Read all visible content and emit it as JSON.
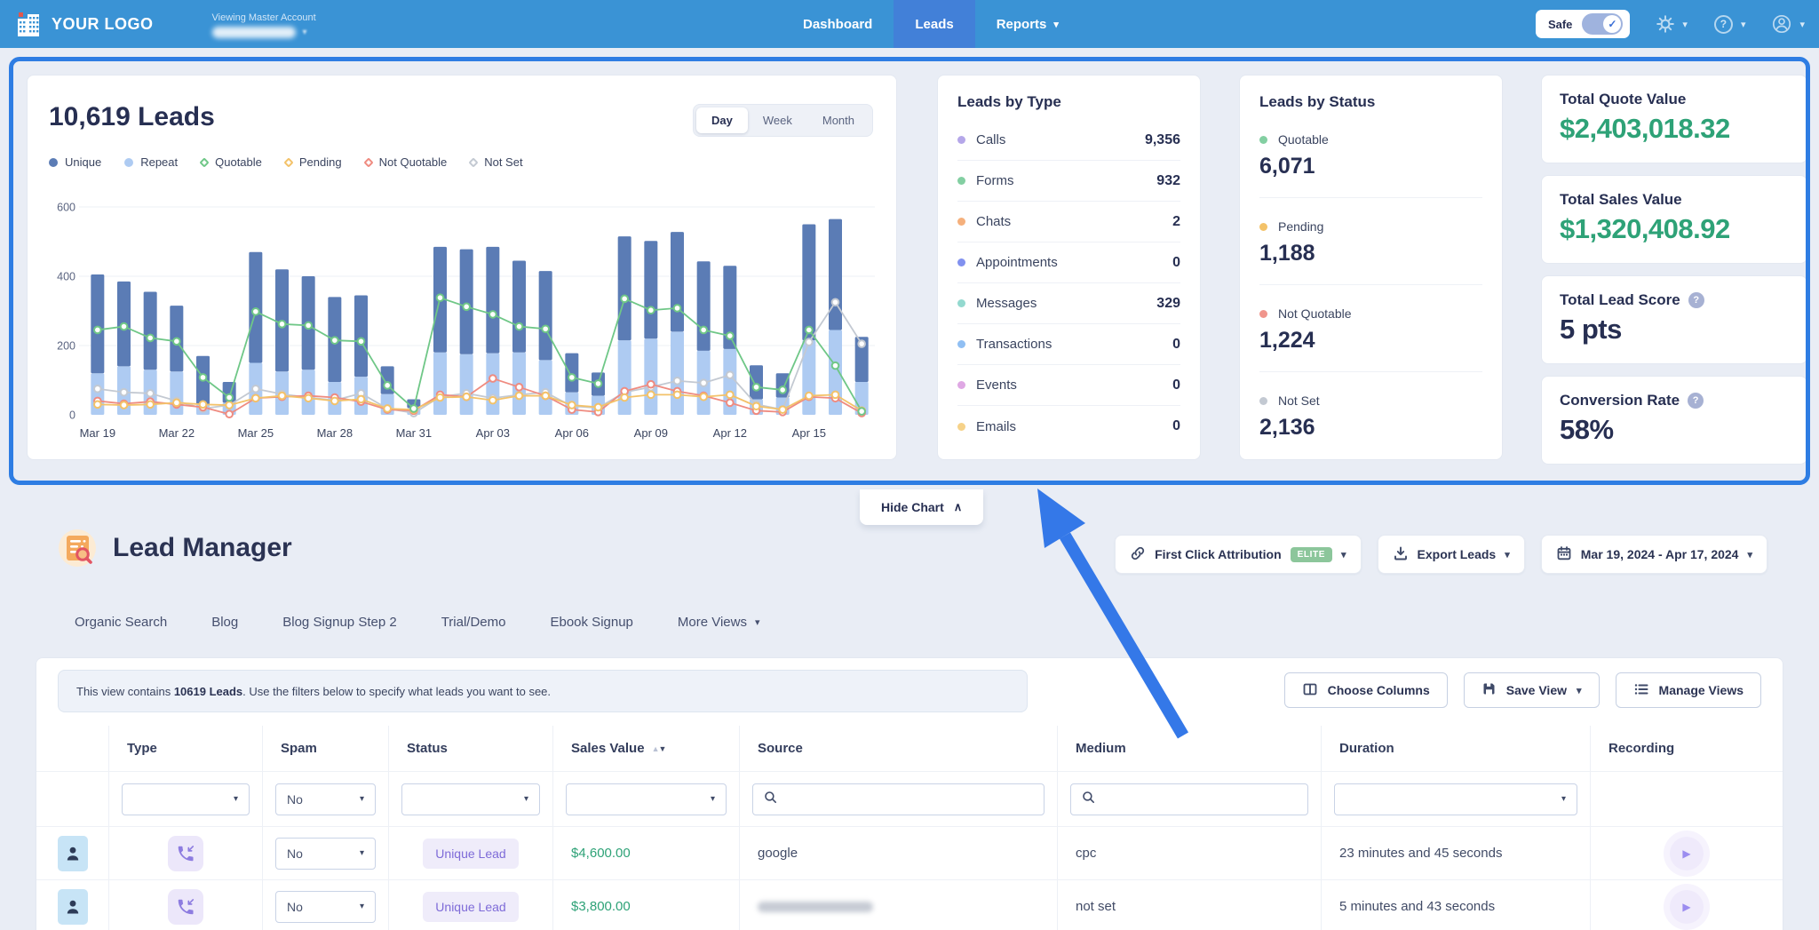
{
  "icons": {
    "chevron_down": "▾",
    "chevron_up": "∧",
    "help": "?",
    "play": "▶",
    "sort_up": "▲",
    "sort_down": "▼",
    "check": "✓"
  },
  "colors": {
    "nav_blue": "#3a93d5",
    "nav_active_tab": "#4280d8",
    "highlight_border": "#2e7de3",
    "annotation_arrow": "#3478e8",
    "money_green": "#2ea277",
    "navy": "#272f52"
  },
  "nav": {
    "logo_text": "YOUR LOGO",
    "viewing_label": "Viewing Master Account",
    "links": [
      {
        "label": "Dashboard",
        "active": false,
        "dropdown": false
      },
      {
        "label": "Leads",
        "active": true,
        "dropdown": false
      },
      {
        "label": "Reports",
        "active": false,
        "dropdown": true
      }
    ],
    "safe_label": "Safe"
  },
  "chart_card": {
    "title": "10,619 Leads",
    "range_tabs": [
      {
        "label": "Day",
        "active": true
      },
      {
        "label": "Week",
        "active": false
      },
      {
        "label": "Month",
        "active": false
      }
    ],
    "legend": [
      {
        "label": "Unique",
        "marker": "circle",
        "color": "#5b7cb5"
      },
      {
        "label": "Repeat",
        "marker": "circle",
        "color": "#aecbf2"
      },
      {
        "label": "Quotable",
        "marker": "diamond",
        "color": "#6fc787"
      },
      {
        "label": "Pending",
        "marker": "diamond",
        "color": "#f3c269"
      },
      {
        "label": "Not Quotable",
        "marker": "diamond",
        "color": "#ef8b80"
      },
      {
        "label": "Not Set",
        "marker": "diamond",
        "color": "#c3c9d2"
      }
    ]
  },
  "chart_data": {
    "type": "bar",
    "title": "10,619 Leads",
    "ylim": [
      0,
      600
    ],
    "yticks": [
      0,
      200,
      400,
      600
    ],
    "grid": true,
    "x": [
      "Mar 19",
      "Mar 20",
      "Mar 21",
      "Mar 22",
      "Mar 23",
      "Mar 24",
      "Mar 25",
      "Mar 26",
      "Mar 27",
      "Mar 28",
      "Mar 29",
      "Mar 30",
      "Mar 31",
      "Apr 01",
      "Apr 02",
      "Apr 03",
      "Apr 04",
      "Apr 05",
      "Apr 06",
      "Apr 07",
      "Apr 08",
      "Apr 09",
      "Apr 10",
      "Apr 11",
      "Apr 12",
      "Apr 13",
      "Apr 14",
      "Apr 15",
      "Apr 16",
      "Apr 17"
    ],
    "x_labels_shown": [
      "Mar 19",
      "Mar 22",
      "Mar 25",
      "Mar 28",
      "Mar 31",
      "Apr 03",
      "Apr 06",
      "Apr 09",
      "Apr 12",
      "Apr 15"
    ],
    "stacked_series": [
      {
        "name": "Repeat",
        "color": "#aecbf2",
        "values": [
          120,
          140,
          130,
          125,
          30,
          35,
          150,
          125,
          130,
          95,
          110,
          60,
          20,
          180,
          175,
          178,
          180,
          158,
          65,
          55,
          215,
          220,
          240,
          185,
          190,
          45,
          50,
          215,
          245,
          95
        ]
      },
      {
        "name": "Unique",
        "color": "#5b7cb5",
        "values": [
          285,
          245,
          225,
          190,
          140,
          60,
          320,
          295,
          270,
          245,
          235,
          80,
          25,
          305,
          303,
          307,
          265,
          257,
          113,
          67,
          300,
          282,
          288,
          258,
          240,
          98,
          70,
          335,
          320,
          130
        ]
      }
    ],
    "line_series": [
      {
        "name": "Not Set",
        "color": "#c3c9d2",
        "values": [
          75,
          65,
          62,
          40,
          18,
          28,
          75,
          60,
          50,
          42,
          62,
          18,
          5,
          52,
          62,
          48,
          58,
          65,
          25,
          20,
          65,
          80,
          98,
          92,
          115,
          30,
          15,
          210,
          325,
          205
        ]
      },
      {
        "name": "Not Quotable",
        "color": "#ef8b80",
        "values": [
          40,
          32,
          38,
          30,
          22,
          2,
          48,
          52,
          55,
          50,
          38,
          15,
          12,
          58,
          52,
          105,
          80,
          55,
          15,
          8,
          68,
          88,
          68,
          55,
          35,
          12,
          8,
          52,
          48,
          5
        ]
      },
      {
        "name": "Pending",
        "color": "#f3c269",
        "values": [
          30,
          28,
          30,
          35,
          30,
          28,
          48,
          55,
          48,
          40,
          45,
          18,
          15,
          50,
          52,
          42,
          55,
          55,
          28,
          22,
          50,
          58,
          58,
          52,
          58,
          25,
          15,
          55,
          58,
          12
        ]
      },
      {
        "name": "Quotable",
        "color": "#6fc787",
        "values": [
          245,
          255,
          222,
          212,
          108,
          50,
          298,
          262,
          258,
          215,
          212,
          85,
          18,
          338,
          312,
          290,
          255,
          248,
          108,
          90,
          335,
          302,
          308,
          245,
          228,
          80,
          72,
          245,
          142,
          10
        ]
      }
    ]
  },
  "leads_by_type": {
    "title": "Leads by Type",
    "rows": [
      {
        "label": "Calls",
        "value": "9,356",
        "color": "#b5a7e9"
      },
      {
        "label": "Forms",
        "value": "932",
        "color": "#83cfa2"
      },
      {
        "label": "Chats",
        "value": "2",
        "color": "#f5b07c"
      },
      {
        "label": "Appointments",
        "value": "0",
        "color": "#8191ef"
      },
      {
        "label": "Messages",
        "value": "329",
        "color": "#93d9cf"
      },
      {
        "label": "Transactions",
        "value": "0",
        "color": "#90bff3"
      },
      {
        "label": "Events",
        "value": "0",
        "color": "#dfa8e4"
      },
      {
        "label": "Emails",
        "value": "0",
        "color": "#f6d289"
      }
    ]
  },
  "leads_by_status": {
    "title": "Leads by Status",
    "rows": [
      {
        "label": "Quotable",
        "value": "6,071",
        "color": "#83cfa2"
      },
      {
        "label": "Pending",
        "value": "1,188",
        "color": "#f3c269"
      },
      {
        "label": "Not Quotable",
        "value": "1,224",
        "color": "#f0958c"
      },
      {
        "label": "Not Set",
        "value": "2,136",
        "color": "#c3c9d2"
      }
    ]
  },
  "summary_cards": [
    {
      "label": "Total Quote Value",
      "value": "$2,403,018.32",
      "accent": "#2ea277",
      "help": false
    },
    {
      "label": "Total Sales Value",
      "value": "$1,320,408.92",
      "accent": "#2ea277",
      "help": false
    },
    {
      "label": "Total Lead Score",
      "value": "5 pts",
      "accent": "#272f52",
      "help": true
    },
    {
      "label": "Conversion Rate",
      "value": "58%",
      "accent": "#272f52",
      "help": true
    }
  ],
  "hide_chart": {
    "label": "Hide Chart"
  },
  "lead_manager": {
    "title": "Lead Manager",
    "toolbar": [
      {
        "label": "First Click Attribution",
        "icon": "link",
        "badge": "ELITE",
        "dropdown": true
      },
      {
        "label": "Export Leads",
        "icon": "download",
        "badge": "",
        "dropdown": true
      },
      {
        "label": "Mar 19, 2024 - Apr 17, 2024",
        "icon": "calendar",
        "badge": "",
        "dropdown": true
      }
    ],
    "view_tabs": [
      "Organic Search",
      "Blog",
      "Blog Signup Step 2",
      "Trial/Demo",
      "Ebook Signup"
    ],
    "more_views_label": "More Views",
    "info": {
      "prefix": "This view contains ",
      "bold": "10619 Leads",
      "suffix": ". Use the filters below to specify what leads you want to see."
    },
    "actions": [
      {
        "label": "Choose Columns",
        "icon": "columns",
        "dropdown": false
      },
      {
        "label": "Save View",
        "icon": "save",
        "dropdown": true
      },
      {
        "label": "Manage Views",
        "icon": "list",
        "dropdown": false
      }
    ],
    "table": {
      "columns": [
        {
          "label": "Type",
          "filter": "select",
          "filter_value": "",
          "sortable": false
        },
        {
          "label": "Spam",
          "filter": "select",
          "filter_value": "No",
          "sortable": false
        },
        {
          "label": "Status",
          "filter": "select",
          "filter_value": "",
          "sortable": false
        },
        {
          "label": "Sales Value",
          "filter": "select",
          "filter_value": "",
          "sortable": true
        },
        {
          "label": "Source",
          "filter": "search",
          "filter_value": "",
          "sortable": false
        },
        {
          "label": "Medium",
          "filter": "search",
          "filter_value": "",
          "sortable": false
        },
        {
          "label": "Duration",
          "filter": "select",
          "filter_value": "",
          "sortable": false
        },
        {
          "label": "Recording",
          "filter": "none",
          "filter_value": "",
          "sortable": false
        }
      ],
      "rows": [
        {
          "spam": "No",
          "status": "Unique Lead",
          "sales_value": "$4,600.00",
          "source": "google",
          "source_redacted": false,
          "medium": "cpc",
          "duration": "23 minutes and 45 seconds",
          "has_recording": true
        },
        {
          "spam": "No",
          "status": "Unique Lead",
          "sales_value": "$3,800.00",
          "source": "",
          "source_redacted": true,
          "medium": "not set",
          "duration": "5 minutes and 43 seconds",
          "has_recording": true
        }
      ]
    }
  }
}
